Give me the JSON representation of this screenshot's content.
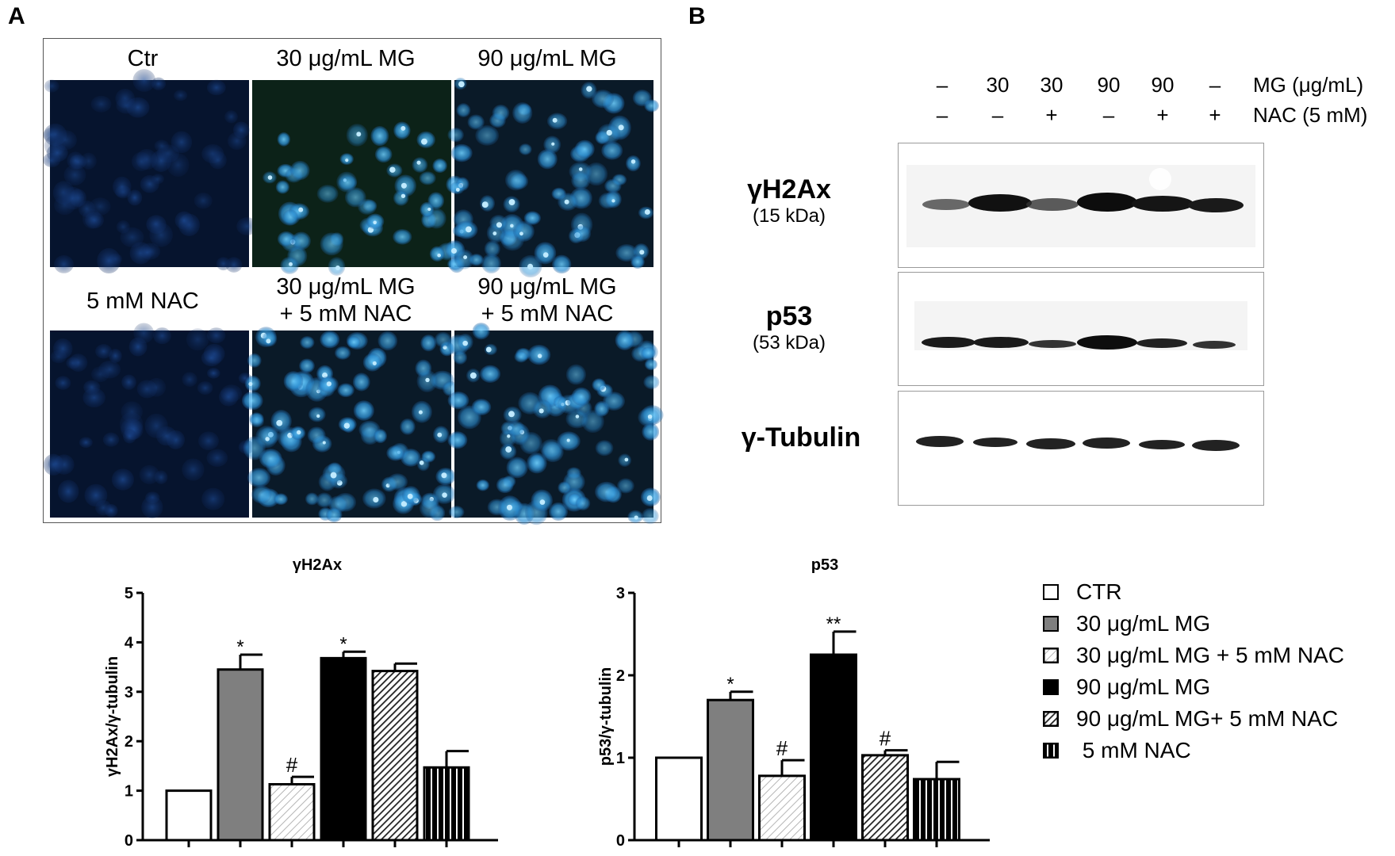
{
  "panel_a": {
    "letter": "A",
    "labels": {
      "ctr": "Ctr",
      "mg30": "30 μg/mL MG",
      "mg90": "90 μg/mL MG",
      "nac": "5 mM NAC",
      "mg30_nac_l1": "30 μg/mL MG",
      "mg30_nac_l2": "+ 5 mM NAC",
      "mg90_nac_l1": "90 μg/mL MG",
      "mg90_nac_l2": "+ 5 mM NAC"
    }
  },
  "panel_b": {
    "letter": "B",
    "mg_lanes": [
      "–",
      "30",
      "30",
      "90",
      "90",
      "–"
    ],
    "nac_lanes": [
      "–",
      "–",
      "+",
      "–",
      "+",
      "+"
    ],
    "mg_label": "MG (μg/mL)",
    "nac_label": "NAC (5 mM)",
    "blots": [
      {
        "name": "γH2Ax",
        "kda": "(15 kDa)"
      },
      {
        "name": "p53",
        "kda": "(53 kDa)"
      },
      {
        "name": "γ-Tubulin",
        "kda": ""
      }
    ]
  },
  "chart_data": [
    {
      "type": "bar",
      "title": "γH2Ax",
      "ylabel": "γH2Ax/γ-tubulin",
      "xlabel": "",
      "ylim": [
        0,
        5
      ],
      "yticks": [
        0,
        1,
        2,
        3,
        4,
        5
      ],
      "categories": [
        "CTR",
        "30 μg/mL MG",
        "30 μg/mL MG + 5 mM NAC",
        "90 μg/mL MG",
        "90 μg/mL MG+ 5 mM NAC",
        "5 mM NAC"
      ],
      "values": [
        1.0,
        3.45,
        1.13,
        3.68,
        3.42,
        1.47
      ],
      "errors": [
        0,
        0.3,
        0.15,
        0.13,
        0.15,
        0.33
      ],
      "annotations": [
        "",
        "*",
        "#",
        "*",
        "",
        ""
      ]
    },
    {
      "type": "bar",
      "title": "p53",
      "ylabel": "p53/γ-tubulin",
      "xlabel": "",
      "ylim": [
        0,
        3
      ],
      "yticks": [
        0,
        1,
        2,
        3
      ],
      "categories": [
        "CTR",
        "30 μg/mL MG",
        "30 μg/mL MG + 5 mM NAC",
        "90 μg/mL MG",
        "90 μg/mL MG+ 5 mM NAC",
        "5 mM NAC"
      ],
      "values": [
        1.0,
        1.7,
        0.78,
        2.25,
        1.03,
        0.74
      ],
      "errors": [
        0,
        0.1,
        0.19,
        0.28,
        0.06,
        0.21
      ],
      "annotations": [
        "",
        "*",
        "#",
        "**",
        "#",
        ""
      ]
    }
  ],
  "legend": {
    "items": [
      {
        "label": "CTR",
        "style": "white"
      },
      {
        "label": "30 μg/mL MG",
        "style": "gray"
      },
      {
        "label": "30 μg/mL MG + 5 mM NAC",
        "style": "light-hatch"
      },
      {
        "label": "90 μg/mL MG",
        "style": "black"
      },
      {
        "label": "90 μg/mL MG+ 5 mM NAC",
        "style": "dark-hatch"
      },
      {
        "label": " 5 mM NAC",
        "style": "vertical-stripes"
      }
    ]
  },
  "colors": {
    "gray_bar": "#7f7f7f",
    "nuclei_blue": "#2f8fd0",
    "micrograph_bg": "#06142e",
    "band": "#1c1c1c"
  }
}
